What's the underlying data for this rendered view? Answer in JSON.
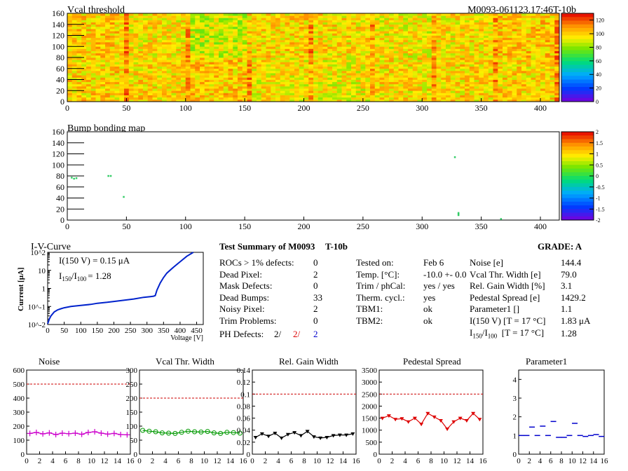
{
  "header": {
    "module_id": "M0093-061123.17:46T-10b"
  },
  "chart_data": [
    {
      "type": "heatmap",
      "title": "Vcal threshold",
      "xlim": [
        0,
        416
      ],
      "ylim": [
        0,
        160
      ],
      "x_ticks": [
        0,
        50,
        100,
        150,
        200,
        250,
        300,
        350,
        400
      ],
      "y_ticks": [
        0,
        20,
        40,
        60,
        80,
        100,
        120,
        140,
        160
      ],
      "colorbar_ticks": [
        0,
        20,
        40,
        60,
        80,
        100,
        120
      ],
      "zlim": [
        0,
        130
      ],
      "roc_levels_top": [
        100,
        96,
        88,
        98,
        97,
        94,
        96,
        100
      ],
      "roc_levels_bottom": [
        99,
        98,
        100,
        95,
        94,
        97,
        98,
        98
      ]
    },
    {
      "type": "heatmap",
      "title": "Bump bonding map",
      "xlim": [
        0,
        416
      ],
      "ylim": [
        0,
        160
      ],
      "x_ticks": [
        0,
        50,
        100,
        150,
        200,
        250,
        300,
        350,
        400
      ],
      "y_ticks": [
        0,
        20,
        40,
        60,
        80,
        100,
        120,
        140,
        160
      ],
      "colorbar_ticks": [
        "2",
        "1.5",
        "1",
        "0.5",
        "0",
        "-0.5",
        "-1",
        "-1.5",
        "-2"
      ],
      "points": [
        [
          3,
          76
        ],
        [
          5,
          74
        ],
        [
          7,
          75
        ],
        [
          34,
          79
        ],
        [
          36,
          79
        ],
        [
          47,
          41
        ],
        [
          327,
          113
        ],
        [
          330,
          8
        ],
        [
          330,
          10
        ],
        [
          330,
          12
        ],
        [
          366,
          1
        ]
      ]
    },
    {
      "type": "line",
      "title": "I-V-Curve",
      "xlabel": "Voltage [V]",
      "ylabel": "Current [μA]",
      "xlim": [
        0,
        470
      ],
      "ylim": [
        0.01,
        100
      ],
      "log_y": true,
      "x_ticks": [
        0,
        50,
        100,
        150,
        200,
        250,
        300,
        350,
        400,
        450
      ],
      "y_ticks": [
        "10^-2",
        "10^-1",
        "1",
        "10",
        "10^2"
      ],
      "x": [
        0,
        5,
        10,
        20,
        30,
        40,
        50,
        70,
        100,
        130,
        150,
        180,
        200,
        230,
        260,
        290,
        310,
        320,
        325,
        330,
        340,
        350,
        360,
        380,
        400,
        420,
        440
      ],
      "y": [
        0.011,
        0.02,
        0.03,
        0.05,
        0.065,
        0.075,
        0.085,
        0.1,
        0.115,
        0.13,
        0.15,
        0.17,
        0.19,
        0.22,
        0.26,
        0.32,
        0.35,
        0.37,
        0.4,
        0.8,
        2,
        4,
        7,
        15,
        30,
        60,
        100
      ],
      "annotations": {
        "line1_main": "I(150 V) = 0.15 μA",
        "line2_value": "=  1.28"
      }
    },
    {
      "type": "line",
      "title": "Noise",
      "color": "#cc00cc",
      "marker": "cross",
      "x": [
        0,
        1,
        2,
        3,
        4,
        5,
        6,
        7,
        8,
        9,
        10,
        11,
        12,
        13,
        14,
        15
      ],
      "y": [
        148,
        155,
        145,
        152,
        140,
        150,
        146,
        150,
        142,
        155,
        160,
        150,
        143,
        148,
        140,
        138
      ],
      "xlim": [
        0,
        16
      ],
      "ylim": [
        0,
        600
      ],
      "limit_line": 500,
      "x_ticks": [
        0,
        2,
        4,
        6,
        8,
        10,
        12,
        14,
        16
      ],
      "y_ticks": [
        0,
        100,
        200,
        300,
        400,
        500,
        600
      ]
    },
    {
      "type": "line",
      "title": "Vcal Thr. Width",
      "color": "#009900",
      "marker": "circle",
      "x": [
        0,
        1,
        2,
        3,
        4,
        5,
        6,
        7,
        8,
        9,
        10,
        11,
        12,
        13,
        14,
        15
      ],
      "y": [
        85,
        82,
        80,
        76,
        75,
        74,
        78,
        82,
        80,
        79,
        81,
        76,
        74,
        78,
        77,
        75
      ],
      "xlim": [
        0,
        16
      ],
      "ylim": [
        0,
        300
      ],
      "limit_line": 200,
      "x_ticks": [
        0,
        2,
        4,
        6,
        8,
        10,
        12,
        14,
        16
      ],
      "y_ticks": [
        0,
        50,
        100,
        150,
        200,
        250,
        300
      ]
    },
    {
      "type": "line",
      "title": "Rel. Gain Width",
      "color": "#000000",
      "marker": "triangle",
      "x": [
        0,
        1,
        2,
        3,
        4,
        5,
        6,
        7,
        8,
        9,
        10,
        11,
        12,
        13,
        14,
        15
      ],
      "y": [
        0.028,
        0.034,
        0.03,
        0.035,
        0.027,
        0.033,
        0.036,
        0.031,
        0.038,
        0.029,
        0.027,
        0.028,
        0.031,
        0.032,
        0.032,
        0.034
      ],
      "xlim": [
        0,
        16
      ],
      "ylim": [
        0,
        0.14
      ],
      "limit_line": 0.1,
      "x_ticks": [
        0,
        2,
        4,
        6,
        8,
        10,
        12,
        14,
        16
      ],
      "y_ticks": [
        0,
        0.02,
        0.04,
        0.06,
        0.08,
        0.1,
        0.12,
        0.14
      ]
    },
    {
      "type": "line",
      "title": "Pedestal Spread",
      "color": "#dd0000",
      "marker": "triangle",
      "x": [
        0,
        1,
        2,
        3,
        4,
        5,
        6,
        7,
        8,
        9,
        10,
        11,
        12,
        13,
        14,
        15
      ],
      "y": [
        1500,
        1600,
        1450,
        1480,
        1350,
        1500,
        1250,
        1700,
        1550,
        1400,
        1050,
        1350,
        1500,
        1400,
        1700,
        1450
      ],
      "xlim": [
        0,
        16
      ],
      "ylim": [
        0,
        3500
      ],
      "limit_line": 2500,
      "x_ticks": [
        0,
        2,
        4,
        6,
        8,
        10,
        12,
        14,
        16
      ],
      "y_ticks": [
        0,
        500,
        1000,
        1500,
        2000,
        2500,
        3000,
        3500
      ]
    },
    {
      "type": "scatter",
      "title": "Parameter1",
      "color": "#0000cc",
      "marker": "hbar",
      "x": [
        0,
        1,
        2,
        3,
        4,
        5,
        6,
        7,
        8,
        9,
        10,
        11,
        12,
        13,
        14,
        15
      ],
      "y": [
        1.0,
        1.0,
        1.45,
        1.0,
        1.5,
        1.0,
        1.75,
        0.9,
        0.9,
        1.0,
        1.65,
        1.0,
        0.95,
        1.0,
        1.05,
        0.95
      ],
      "xlim": [
        0,
        16
      ],
      "ylim": [
        0,
        4.5
      ],
      "x_ticks": [
        0,
        2,
        4,
        6,
        8,
        10,
        12,
        14,
        16
      ],
      "y_ticks": [
        0,
        1,
        2,
        3,
        4
      ]
    }
  ],
  "summary": {
    "title": "Test Summary of M0093",
    "subtitle": "T-10b",
    "grade": "GRADE:  A",
    "col1": [
      {
        "label": "ROCs > 1% defects:",
        "value": "0"
      },
      {
        "label": "Dead Pixel:",
        "value": "2"
      },
      {
        "label": "Mask Defects:",
        "value": "0"
      },
      {
        "label": "Dead Bumps:",
        "value": "33"
      },
      {
        "label": "Noisy Pixel:",
        "value": "2"
      },
      {
        "label": "Trim Problems:",
        "value": "0"
      }
    ],
    "ph_defects": {
      "label": "PH Defects:",
      "v1": "2/",
      "v2": "2/",
      "v3": "2"
    },
    "col2": [
      {
        "label": "Tested on:",
        "value": "Feb 6"
      },
      {
        "label": "Temp. [°C]:",
        "value": "-10.0 +- 0.0"
      },
      {
        "label": "Trim / phCal:",
        "value": "yes / yes"
      },
      {
        "label": "Therm. cycl.:",
        "value": "yes"
      },
      {
        "label": "TBM1:",
        "value": "ok"
      },
      {
        "label": "TBM2:",
        "value": "ok"
      }
    ],
    "col3": [
      {
        "label": "Noise [e]",
        "value": "144.4"
      },
      {
        "label": "Vcal Thr. Width [e]",
        "value": "79.0"
      },
      {
        "label": "Rel. Gain Width [%]",
        "value": "3.1"
      },
      {
        "label": "Pedestal Spread [e]",
        "value": "1429.2"
      },
      {
        "label": "Parameter1 []",
        "value": "1.1"
      },
      {
        "label": "I(150 V) [T = 17 °C]",
        "value": "1.83 μA"
      }
    ],
    "ratio_row": {
      "label_suffix": "[T = 17 °C]",
      "value": "1.28"
    }
  }
}
